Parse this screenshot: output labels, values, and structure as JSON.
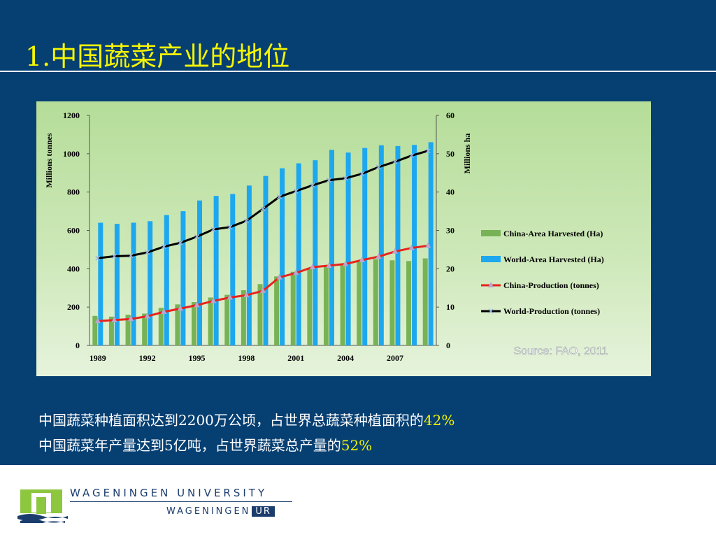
{
  "slide": {
    "title": "1.中国蔬菜产业的地位",
    "line1_text": "中国蔬菜种植面积达到2200万公顷，占世界总蔬菜种植面积的",
    "line1_highlight": "42%",
    "line2_text": "中国蔬菜年产量达到5亿吨，占世界蔬菜总产量的",
    "line2_highlight": "52%",
    "highlight_color": "#f5f500",
    "background_color": "#063f72"
  },
  "branding": {
    "university": "WAGENINGEN UNIVERSITY",
    "sub_name": "WAGENINGEN",
    "sub_badge": "UR"
  },
  "chart_data": {
    "type": "bar",
    "years": [
      1989,
      1990,
      1991,
      1992,
      1993,
      1994,
      1995,
      1996,
      1997,
      1998,
      1999,
      2000,
      2001,
      2002,
      2003,
      2004,
      2005,
      2006,
      2007,
      2008,
      2009
    ],
    "x_tick_labels": [
      "1989",
      "1992",
      "1995",
      "1998",
      "2001",
      "2004",
      "2007"
    ],
    "ylabel_left": "Millions tonnes",
    "ylabel_right": "Millions ha",
    "ylim_left": [
      0,
      1200
    ],
    "ylim_right": [
      0,
      60
    ],
    "left_ticks": [
      0,
      200,
      400,
      600,
      800,
      1000,
      1200
    ],
    "right_ticks": [
      0,
      10,
      20,
      30,
      40,
      50,
      60
    ],
    "source": "Source: FAO, 2011",
    "legend_position": "right",
    "series": [
      {
        "name": "China-Area Harvested (Ha)",
        "kind": "bar",
        "axis": "right",
        "color": "#77b356",
        "values": [
          7.7,
          7.5,
          8.0,
          8.3,
          9.8,
          10.7,
          11.3,
          12.5,
          13.2,
          14.4,
          16.0,
          18.0,
          19.2,
          20.2,
          20.7,
          21.0,
          22.0,
          22.5,
          22.2,
          22.0,
          22.7
        ]
      },
      {
        "name": "World-Area Harvested (Ha)",
        "kind": "bar",
        "axis": "right",
        "color": "#1da7ef",
        "values": [
          32.0,
          31.7,
          32.0,
          32.4,
          34.0,
          35.0,
          37.8,
          39.0,
          39.5,
          41.7,
          44.2,
          46.2,
          47.5,
          48.3,
          51.0,
          50.3,
          51.5,
          52.2,
          52.0,
          52.3,
          53.0
        ]
      },
      {
        "name": "China-Production (tonnes)",
        "kind": "line",
        "axis": "left",
        "color": "#e8231d",
        "marker_color": "#b9a6cf",
        "values": [
          127,
          132,
          138,
          152,
          175,
          192,
          210,
          232,
          250,
          262,
          285,
          355,
          378,
          408,
          416,
          425,
          445,
          463,
          490,
          508,
          520
        ]
      },
      {
        "name": "World-Production (tonnes)",
        "kind": "line",
        "axis": "left",
        "color": "#000000",
        "marker_color": "#9bb7e0",
        "values": [
          455,
          465,
          468,
          485,
          515,
          535,
          567,
          605,
          617,
          650,
          712,
          775,
          805,
          835,
          862,
          872,
          895,
          930,
          958,
          990,
          1015
        ]
      }
    ]
  }
}
